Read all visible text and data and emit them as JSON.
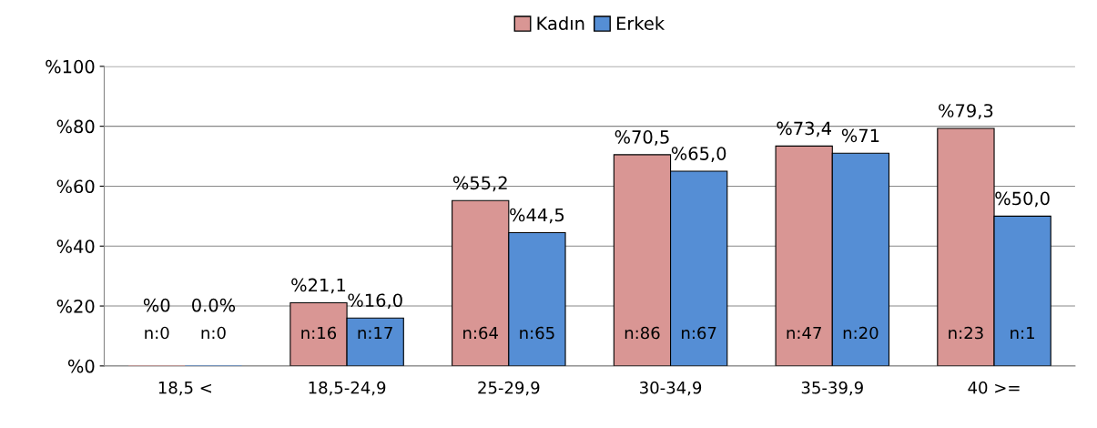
{
  "chart_data": {
    "type": "bar",
    "categories": [
      "18,5 <",
      "18,5-24,9",
      "25-29,9",
      "30-34,9",
      "35-39,9",
      "40 >="
    ],
    "series": [
      {
        "name": "Kadın",
        "color": "#d99694",
        "values": [
          0,
          21.1,
          55.2,
          70.5,
          73.4,
          79.3
        ],
        "value_labels": [
          "%0",
          "%21,1",
          "%55,2",
          "%70,5",
          "%73,4",
          "%79,3"
        ]
      },
      {
        "name": "Erkek",
        "color": "#558ed5",
        "values": [
          0,
          16.0,
          44.5,
          65.0,
          71,
          50.0
        ],
        "value_labels": [
          "0.0%",
          "%16,0",
          "%44,5",
          "%65,0",
          "%71",
          "%50,0"
        ]
      }
    ],
    "ylim": [
      0,
      100
    ],
    "yticks": [
      {
        "value": 0,
        "label": "%0"
      },
      {
        "value": 20,
        "label": "%20"
      },
      {
        "value": 40,
        "label": "%40"
      },
      {
        "value": 60,
        "label": "%60"
      },
      {
        "value": 80,
        "label": "%80"
      },
      {
        "value": 100,
        "label": "%100"
      }
    ],
    "grid": "y",
    "legend": "top",
    "annotations": [
      "n:0",
      "n:0",
      "n:16",
      "n:17",
      "n:64",
      "n:65",
      "n:86",
      "n:67",
      "n:47",
      "n:20",
      "n:23",
      "n:1"
    ]
  }
}
